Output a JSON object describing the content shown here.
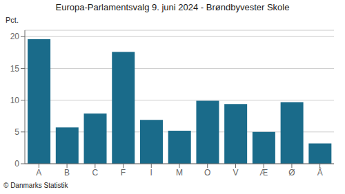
{
  "chart_data": {
    "type": "bar",
    "title": "Europa-Parlamentsvalg 9. juni 2024 - Brøndbyvester Skole",
    "ylabel": "Pct.",
    "annotations": [
      "© Danmarks Statistik"
    ],
    "categories": [
      "A",
      "B",
      "C",
      "F",
      "I",
      "M",
      "O",
      "V",
      "Æ",
      "Ø",
      "Å"
    ],
    "values": [
      19.6,
      5.7,
      7.9,
      17.6,
      6.9,
      5.2,
      9.9,
      9.4,
      5.0,
      9.7,
      3.2
    ],
    "color": "#1a6b8a",
    "ylim": [
      0,
      21
    ],
    "yticks": [
      0,
      5,
      10,
      15,
      20
    ],
    "grid": true
  }
}
